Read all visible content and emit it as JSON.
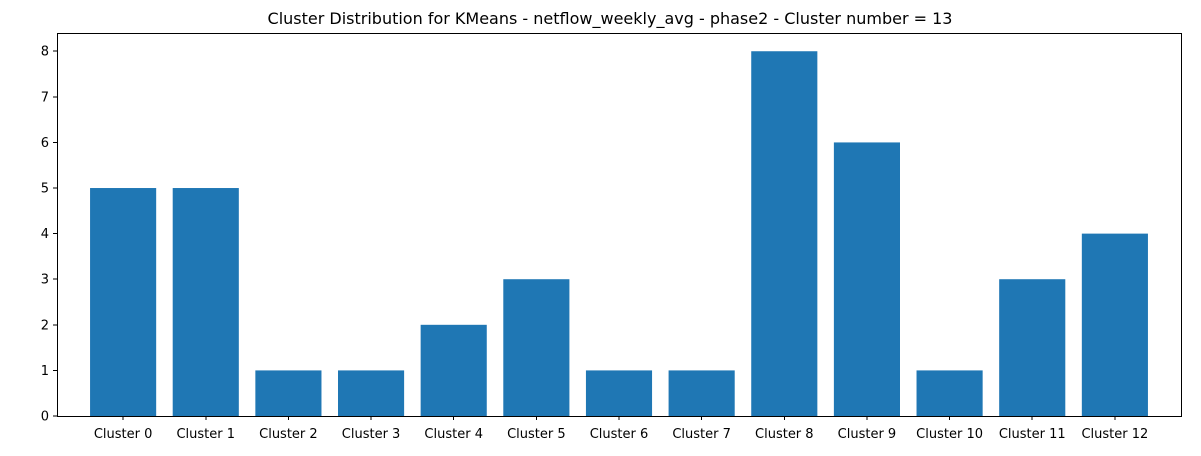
{
  "chart_data": {
    "type": "bar",
    "title": "Cluster Distribution for KMeans - netflow_weekly_avg - phase2 - Cluster number = 13",
    "xlabel": "",
    "ylabel": "",
    "categories": [
      "Cluster 0",
      "Cluster 1",
      "Cluster 2",
      "Cluster 3",
      "Cluster 4",
      "Cluster 5",
      "Cluster 6",
      "Cluster 7",
      "Cluster 8",
      "Cluster 9",
      "Cluster 10",
      "Cluster 11",
      "Cluster 12"
    ],
    "values": [
      5,
      5,
      1,
      1,
      2,
      3,
      1,
      1,
      8,
      6,
      1,
      3,
      4
    ],
    "ylim": [
      0,
      8.4
    ],
    "yticks": [
      "0",
      "1",
      "2",
      "3",
      "4",
      "5",
      "6",
      "7",
      "8"
    ],
    "bar_color": "#1f77b4",
    "grid": false,
    "legend": "none"
  }
}
